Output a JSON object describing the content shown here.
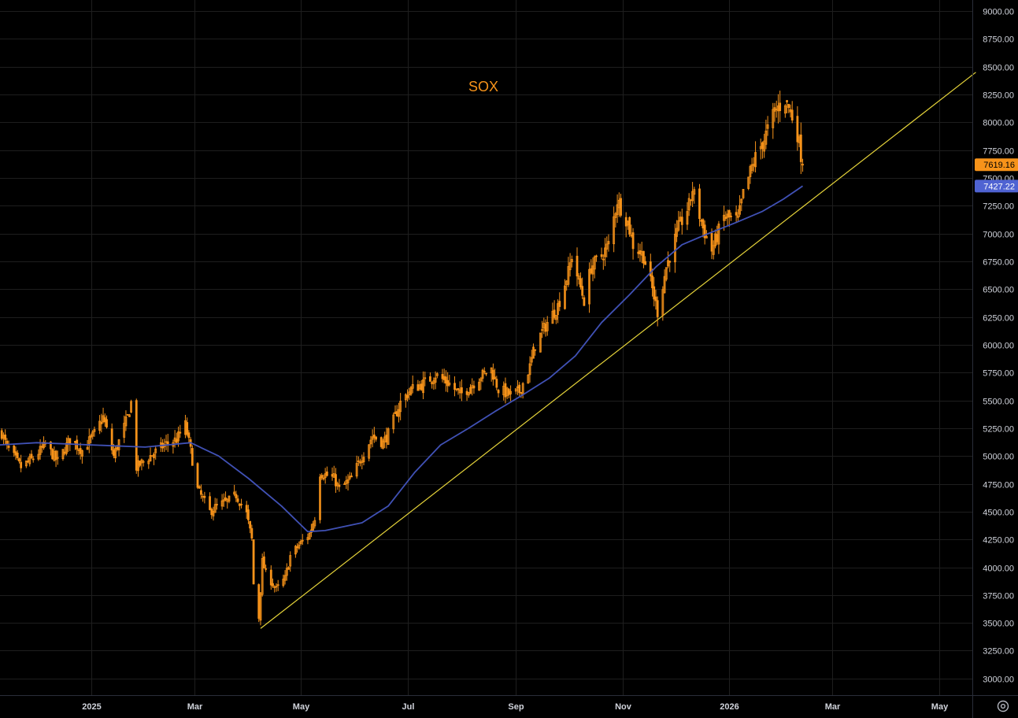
{
  "chart_data": {
    "type": "candlestick",
    "title": "SOX",
    "x_range": [
      "2024-11-10",
      "2026-05-20"
    ],
    "ylim": [
      2850,
      9100
    ],
    "y_ticks": [
      3000,
      3250,
      3500,
      3750,
      4000,
      4250,
      4500,
      4750,
      5000,
      5250,
      5500,
      5750,
      6000,
      6250,
      6500,
      6750,
      7000,
      7250,
      7500,
      7750,
      8000,
      8250,
      8500,
      8750,
      9000
    ],
    "y_tick_labels": [
      "3000.00",
      "3250.00",
      "3500.00",
      "3750.00",
      "4000.00",
      "4250.00",
      "4500.00",
      "4750.00",
      "5000.00",
      "5250.00",
      "5500.00",
      "5750.00",
      "6000.00",
      "6250.00",
      "6500.00",
      "6750.00",
      "7000.00",
      "7250.00",
      "7500.00",
      "7750.00",
      "8000.00",
      "8250.00",
      "8500.00",
      "8750.00",
      "9000.00"
    ],
    "x_ticks": [
      {
        "date": "2025-01-01",
        "label": "2025"
      },
      {
        "date": "2025-03-01",
        "label": "Mar"
      },
      {
        "date": "2025-05-01",
        "label": "May"
      },
      {
        "date": "2025-07-01",
        "label": "Jul"
      },
      {
        "date": "2025-09-01",
        "label": "Sep"
      },
      {
        "date": "2025-11-01",
        "label": "Nov"
      },
      {
        "date": "2026-01-01",
        "label": "2026"
      },
      {
        "date": "2026-03-01",
        "label": "Mar"
      },
      {
        "date": "2026-05-01",
        "label": "May"
      }
    ],
    "price_anchors": [
      [
        "2024-11-10",
        5250
      ],
      [
        "2024-11-14",
        5080
      ],
      [
        "2024-11-22",
        4900
      ],
      [
        "2024-11-29",
        4980
      ],
      [
        "2024-12-06",
        5100
      ],
      [
        "2024-12-13",
        4950
      ],
      [
        "2024-12-20",
        5150
      ],
      [
        "2024-12-27",
        5050
      ],
      [
        "2025-01-03",
        5200
      ],
      [
        "2025-01-08",
        5350
      ],
      [
        "2025-01-14",
        5000
      ],
      [
        "2025-01-22",
        5350
      ],
      [
        "2025-01-24",
        5480
      ],
      [
        "2025-01-27",
        4900
      ],
      [
        "2025-02-04",
        5000
      ],
      [
        "2025-02-12",
        5100
      ],
      [
        "2025-02-19",
        5150
      ],
      [
        "2025-02-24",
        5280
      ],
      [
        "2025-02-27",
        5050
      ],
      [
        "2025-03-03",
        4700
      ],
      [
        "2025-03-10",
        4500
      ],
      [
        "2025-03-14",
        4550
      ],
      [
        "2025-03-21",
        4600
      ],
      [
        "2025-03-25",
        4650
      ],
      [
        "2025-03-31",
        4480
      ],
      [
        "2025-04-03",
        4250
      ],
      [
        "2025-04-04",
        3850
      ],
      [
        "2025-04-07",
        3550
      ],
      [
        "2025-04-09",
        4050
      ],
      [
        "2025-04-11",
        3950
      ],
      [
        "2025-04-17",
        3800
      ],
      [
        "2025-04-22",
        3900
      ],
      [
        "2025-04-25",
        4100
      ],
      [
        "2025-04-30",
        4200
      ],
      [
        "2025-05-06",
        4300
      ],
      [
        "2025-05-09",
        4450
      ],
      [
        "2025-05-12",
        4850
      ],
      [
        "2025-05-20",
        4800
      ],
      [
        "2025-05-23",
        4700
      ],
      [
        "2025-05-30",
        4800
      ],
      [
        "2025-06-05",
        5000
      ],
      [
        "2025-06-11",
        5180
      ],
      [
        "2025-06-17",
        5120
      ],
      [
        "2025-06-20",
        5200
      ],
      [
        "2025-06-27",
        5480
      ],
      [
        "2025-07-03",
        5600
      ],
      [
        "2025-07-10",
        5650
      ],
      [
        "2025-07-17",
        5730
      ],
      [
        "2025-07-25",
        5650
      ],
      [
        "2025-07-31",
        5550
      ],
      [
        "2025-08-04",
        5600
      ],
      [
        "2025-08-12",
        5720
      ],
      [
        "2025-08-18",
        5780
      ],
      [
        "2025-08-22",
        5600
      ],
      [
        "2025-08-29",
        5550
      ],
      [
        "2025-09-03",
        5580
      ],
      [
        "2025-09-09",
        5800
      ],
      [
        "2025-09-12",
        6000
      ],
      [
        "2025-09-19",
        6200
      ],
      [
        "2025-09-25",
        6350
      ],
      [
        "2025-10-01",
        6650
      ],
      [
        "2025-10-03",
        6800
      ],
      [
        "2025-10-10",
        6400
      ],
      [
        "2025-10-14",
        6700
      ],
      [
        "2025-10-20",
        6800
      ],
      [
        "2025-10-24",
        6900
      ],
      [
        "2025-10-29",
        7300
      ],
      [
        "2025-11-04",
        7100
      ],
      [
        "2025-11-07",
        6900
      ],
      [
        "2025-11-13",
        6800
      ],
      [
        "2025-11-18",
        6500
      ],
      [
        "2025-11-21",
        6300
      ],
      [
        "2025-11-26",
        6700
      ],
      [
        "2025-12-03",
        7050
      ],
      [
        "2025-12-09",
        7250
      ],
      [
        "2025-12-11",
        7400
      ],
      [
        "2025-12-17",
        7050
      ],
      [
        "2025-12-22",
        6850
      ],
      [
        "2025-12-29",
        7150
      ],
      [
        "2026-01-06",
        7120
      ],
      [
        "2026-01-09",
        7350
      ],
      [
        "2026-01-15",
        7650
      ],
      [
        "2026-01-21",
        7850
      ],
      [
        "2026-01-27",
        8100
      ],
      [
        "2026-02-02",
        8200
      ],
      [
        "2026-02-05",
        8100
      ],
      [
        "2026-02-09",
        7900
      ],
      [
        "2026-02-12",
        7619.16
      ]
    ],
    "moving_average": [
      [
        "2024-11-10",
        5100
      ],
      [
        "2024-12-01",
        5120
      ],
      [
        "2025-01-01",
        5100
      ],
      [
        "2025-02-01",
        5080
      ],
      [
        "2025-02-27",
        5120
      ],
      [
        "2025-03-15",
        5000
      ],
      [
        "2025-04-01",
        4800
      ],
      [
        "2025-04-20",
        4550
      ],
      [
        "2025-05-05",
        4320
      ],
      [
        "2025-05-15",
        4330
      ],
      [
        "2025-06-05",
        4400
      ],
      [
        "2025-06-20",
        4550
      ],
      [
        "2025-07-05",
        4850
      ],
      [
        "2025-07-20",
        5100
      ],
      [
        "2025-08-05",
        5250
      ],
      [
        "2025-08-20",
        5400
      ],
      [
        "2025-09-05",
        5550
      ],
      [
        "2025-09-20",
        5700
      ],
      [
        "2025-10-05",
        5900
      ],
      [
        "2025-10-20",
        6200
      ],
      [
        "2025-11-05",
        6450
      ],
      [
        "2025-11-20",
        6700
      ],
      [
        "2025-12-05",
        6900
      ],
      [
        "2025-12-20",
        7000
      ],
      [
        "2026-01-05",
        7100
      ],
      [
        "2026-01-20",
        7200
      ],
      [
        "2026-02-01",
        7310
      ],
      [
        "2026-02-12",
        7427.22
      ]
    ],
    "trendline": {
      "start": [
        "2025-04-08",
        3450
      ],
      "end": [
        "2026-05-22",
        8450
      ]
    },
    "last_price": 7619.16,
    "last_price_label": "7619.16",
    "ma_last": 7427.22,
    "ma_last_label": "7427.22",
    "grid": true,
    "colors": {
      "background": "#000000",
      "candle": "#f7931a",
      "moving_average": "#4051b5",
      "trendline": "#e6d43a",
      "grid": "#1e1e1e",
      "axis_text": "#d1d4dc",
      "price_tag": "#f7931a",
      "ma_tag": "#4f63d2"
    }
  },
  "ui": {
    "settings_icon": "gear-icon"
  }
}
